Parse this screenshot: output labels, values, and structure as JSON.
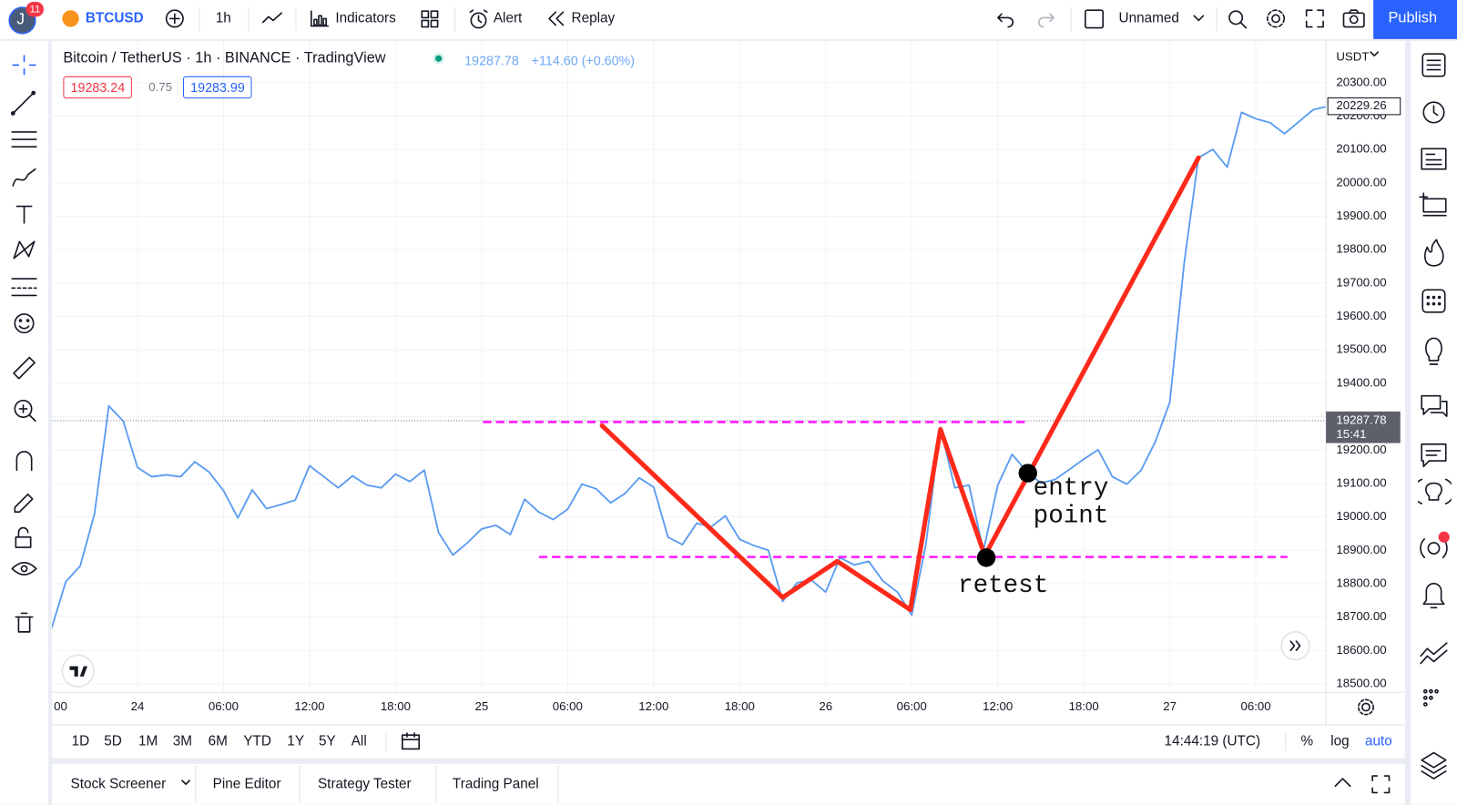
{
  "toolbar": {
    "avatar": "J",
    "badge": "11",
    "symbol": "BTCUSD",
    "interval": "1h",
    "indicators": "Indicators",
    "alert": "Alert",
    "replay": "Replay",
    "layout": "Unnamed",
    "publish": "Publish"
  },
  "legend": {
    "title": "Bitcoin / TetherUS · 1h · BINANCE · TradingView",
    "price": "19287.78",
    "change": "+114.60 (+0.60%)",
    "bid": "19283.24",
    "spread": "0.75",
    "ask": "19283.99"
  },
  "chart_data": {
    "type": "line",
    "currency": "USDT",
    "color": "#5a9bf0",
    "categories": [
      "00",
      null,
      null,
      null,
      null,
      null,
      "24",
      null,
      null,
      null,
      null,
      null,
      "06:00",
      null,
      null,
      null,
      null,
      null,
      "12:00",
      null,
      null,
      null,
      null,
      null,
      "18:00",
      null,
      null,
      null,
      null,
      null,
      "25",
      null,
      null,
      null,
      null,
      null,
      "06:00",
      null,
      null,
      null,
      null,
      null,
      "12:00",
      null,
      null,
      null,
      null,
      null,
      "18:00",
      null,
      null,
      null,
      null,
      null,
      "26",
      null,
      null,
      null,
      null,
      null,
      "06:00",
      null,
      null,
      null,
      null,
      null,
      "12:00",
      null,
      null,
      null,
      null,
      null,
      "18:00",
      null,
      null,
      null,
      null,
      null,
      "27",
      null,
      null,
      null,
      null,
      null,
      "06:00",
      null,
      null,
      null,
      null,
      null
    ],
    "values": [
      18665,
      18806,
      18853,
      19009,
      19332,
      19287,
      19148,
      19120,
      19126,
      19120,
      19165,
      19134,
      19078,
      18997,
      19081,
      19025,
      19037,
      19050,
      19153,
      19120,
      19087,
      19123,
      19095,
      19087,
      19128,
      19106,
      19140,
      18953,
      18886,
      18922,
      18964,
      18975,
      18947,
      19053,
      19014,
      18992,
      19023,
      19098,
      19084,
      19042,
      19070,
      19117,
      19089,
      18939,
      18917,
      18981,
      18970,
      19003,
      18933,
      18914,
      18900,
      18747,
      18803,
      18811,
      18775,
      18878,
      18856,
      18867,
      18808,
      18775,
      18706,
      18920,
      19268,
      19087,
      19095,
      18898,
      19095,
      19187,
      19137,
      19101,
      19112,
      19142,
      19173,
      19201,
      19120,
      19098,
      19140,
      19226,
      19343,
      19760,
      20075,
      20100,
      20047,
      20211,
      20192,
      20180,
      20147,
      20183,
      20219,
      20229.26
    ],
    "ylim": [
      18475,
      20425
    ],
    "yticks": [
      {
        "value": 18500,
        "label": "18500.00"
      },
      {
        "value": 18600,
        "label": "18600.00"
      },
      {
        "value": 18700,
        "label": "18700.00"
      },
      {
        "value": 18800,
        "label": "18800.00"
      },
      {
        "value": 18900,
        "label": "18900.00"
      },
      {
        "value": 19000,
        "label": "19000.00"
      },
      {
        "value": 19100,
        "label": "19100.00"
      },
      {
        "value": 19200,
        "label": "19200.00"
      },
      {
        "value": 19300,
        "label": "19300.00"
      },
      {
        "value": 19400,
        "label": "19400.00"
      },
      {
        "value": 19500,
        "label": "19500.00"
      },
      {
        "value": 19600,
        "label": "19600.00"
      },
      {
        "value": 19700,
        "label": "19700.00"
      },
      {
        "value": 19800,
        "label": "19800.00"
      },
      {
        "value": 19900,
        "label": "19900.00"
      },
      {
        "value": 20000,
        "label": "20000.00"
      },
      {
        "value": 20100,
        "label": "20100.00"
      },
      {
        "value": 20200,
        "label": "20200.00"
      },
      {
        "value": 20300,
        "label": "20300.00"
      }
    ],
    "grid": true,
    "last_price": 20229.26,
    "price_line": 19287.78,
    "countdown": "15:41",
    "drawings": {
      "zigzag": {
        "color": "#ff2a1a",
        "x": [
          38.4,
          51.0,
          54.8,
          59.9,
          62.0,
          65.1,
          80.0
        ],
        "values": [
          19273,
          18759,
          18867,
          18722,
          19262,
          18884,
          20075
        ]
      },
      "levels": {
        "color": "#ff1aff",
        "values": [
          19284,
          18880
        ],
        "x_from": [
          30.1,
          34.0
        ],
        "x_to": [
          68.0,
          86.2
        ]
      },
      "dots": {
        "x": [
          68.1,
          65.2
        ],
        "values": [
          19131,
          18878
        ]
      }
    },
    "annotations": {
      "entry": "entry point",
      "retest": "retest"
    }
  },
  "range_buttons": [
    "1D",
    "5D",
    "1M",
    "3M",
    "6M",
    "YTD",
    "1Y",
    "5Y",
    "All"
  ],
  "clock": "14:44:19 (UTC)",
  "scale_options": [
    "%",
    "log",
    "auto"
  ],
  "bottom_tabs": [
    "Stock Screener",
    "Pine Editor",
    "Strategy Tester",
    "Trading Panel"
  ]
}
